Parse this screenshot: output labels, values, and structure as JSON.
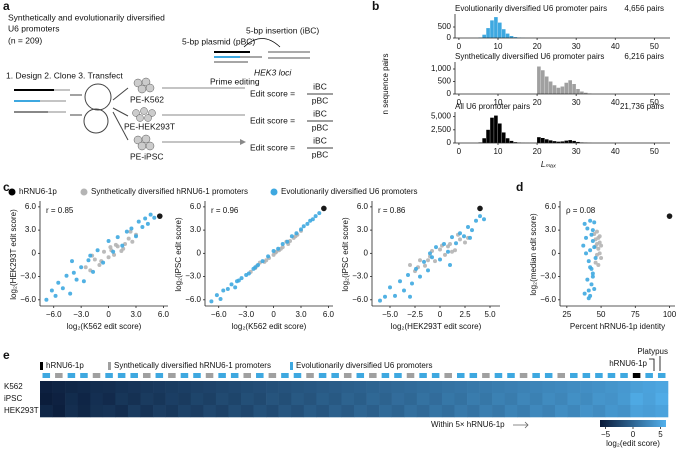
{
  "panel_labels": [
    "a",
    "b",
    "c",
    "d",
    "e"
  ],
  "diagram": {
    "title": [
      "Synthetically and evolutionarily diversified",
      "U6 promoters"
    ],
    "n": "(n = 209)",
    "plasmid": "5-bp plasmid (pBC)",
    "insertion": "5-bp insertion (iBC)",
    "loci": "HEK3 loci",
    "steps": "1. Design  2. Clone  3. Transfect",
    "prime_editing": "Prime editing",
    "cell_lines": [
      "PE-K562",
      "PE-HEK293T",
      "PE-iPSC"
    ],
    "edit_score": "Edit score =",
    "numerator": "iBC",
    "denominator": "pBC"
  },
  "chart_data": [
    {
      "type": "histogram",
      "title": "Evolutionarily diversified U6 promoter pairs",
      "note": "4,656 pairs",
      "color": "#3ea8e0",
      "bins": [
        4,
        5,
        6,
        7,
        8,
        9,
        10,
        11,
        12,
        13,
        14,
        15,
        16,
        17,
        18,
        19,
        20,
        21,
        22,
        23,
        24,
        25,
        26,
        27,
        28,
        29,
        30,
        31,
        32,
        33,
        34
      ],
      "values": [
        0,
        20,
        150,
        450,
        800,
        950,
        700,
        400,
        200,
        90,
        40,
        15,
        5,
        0,
        0,
        0,
        0,
        0,
        0,
        0,
        0,
        0,
        0,
        0,
        0,
        0,
        0,
        0,
        0,
        0
      ],
      "xlim": [
        -1,
        54
      ],
      "xticks": [
        0,
        10,
        20,
        30,
        40,
        50
      ],
      "ylim": [
        0,
        1000
      ],
      "yticks": [
        0,
        500
      ]
    },
    {
      "type": "histogram",
      "title": "Synthetically diversified U6 promoter pairs",
      "note": "6,216 pairs",
      "color": "#a0a0a0",
      "ylabel": "n sequence pairs",
      "bins": [
        4,
        5,
        6,
        7,
        8,
        9,
        10,
        11,
        12,
        13,
        14,
        15,
        16,
        17,
        18,
        19,
        20,
        21,
        22,
        23,
        24,
        25,
        26,
        27,
        28,
        29,
        30,
        31,
        32,
        33,
        34
      ],
      "values": [
        0,
        0,
        0,
        0,
        0,
        0,
        0,
        0,
        0,
        0,
        0,
        0,
        0,
        0,
        0,
        0,
        1100,
        950,
        700,
        500,
        350,
        250,
        300,
        450,
        550,
        400,
        200,
        100,
        50,
        20
      ],
      "xlim": [
        -1,
        54
      ],
      "xticks": [
        0,
        10,
        20,
        30,
        40,
        50
      ],
      "ylim": [
        0,
        1200
      ],
      "yticks": [
        0,
        500,
        {
          "value": 1000,
          "label": "1,000"
        }
      ]
    },
    {
      "type": "histogram",
      "title": "All U6 promoter pairs",
      "note": "21,736 pairs",
      "color": "#000000",
      "xlabel": "Lₘₐₓ",
      "bins": [
        4,
        5,
        6,
        7,
        8,
        9,
        10,
        11,
        12,
        13,
        14,
        15,
        16,
        17,
        18,
        19,
        20,
        21,
        22,
        23,
        24,
        25,
        26,
        27,
        28,
        29,
        30,
        31,
        32,
        33,
        34
      ],
      "values": [
        0,
        100,
        900,
        2500,
        4800,
        5200,
        3700,
        2000,
        900,
        400,
        150,
        60,
        20,
        10,
        5,
        5,
        1100,
        950,
        700,
        500,
        350,
        250,
        300,
        450,
        550,
        400,
        200,
        100,
        50,
        20
      ],
      "xlim": [
        -1,
        54
      ],
      "xticks": [
        0,
        10,
        20,
        30,
        40,
        50
      ],
      "ylim": [
        0,
        5500
      ],
      "yticks": [
        0,
        {
          "value": 2500,
          "label": "2,500"
        },
        {
          "value": 5000,
          "label": "5,000"
        }
      ]
    },
    {
      "type": "scatter",
      "annotation": "r = 0.85",
      "xlabel": "log₂(K562 edit score)",
      "ylabel": "log₂(HEK293T edit score)",
      "xlim": [
        -7.5,
        6.5
      ],
      "xticks": [
        {
          "value": -6,
          "label": "−6.0"
        },
        {
          "value": -3,
          "label": "−3.0"
        },
        0,
        {
          "value": 3,
          "label": "3.0"
        },
        {
          "value": 6,
          "label": "6.0"
        }
      ],
      "ylim": [
        -6.8,
        6.5
      ],
      "yticks": [
        {
          "value": -6,
          "label": "−6.0"
        },
        {
          "value": -3,
          "label": "−3.0"
        },
        0,
        {
          "value": 3,
          "label": "3.0"
        },
        {
          "value": 6,
          "label": "6.0"
        }
      ],
      "series": [
        {
          "name": "hRNU6-1p",
          "color": "#000000",
          "x": [
            5.6
          ],
          "values": [
            4.8
          ]
        },
        {
          "name": "Synthetically diversified hRNU6-1 promoters",
          "color": "#b4b4b4",
          "x": [
            -2.5,
            -2,
            -1.5,
            -1,
            -0.5,
            0,
            0.3,
            0.6,
            1,
            1.4,
            1.8,
            2.2,
            2.6,
            3,
            -1.8,
            0.8,
            1.6,
            2.4,
            -0.8,
            0.2
          ],
          "values": [
            -1.8,
            -2.2,
            -0.8,
            -1.5,
            0.2,
            -0.5,
            0.4,
            -0.2,
            0.9,
            0.3,
            1.2,
            1.9,
            1.5,
            2.4,
            -0.3,
            1.1,
            0.6,
            2.8,
            -1,
            0.8
          ]
        },
        {
          "name": "Evolutionarily diversified U6 promoters",
          "color": "#3ea8e0",
          "x": [
            -6.8,
            -6.2,
            -5.8,
            -5.5,
            -5,
            -4.6,
            -4.2,
            -3.8,
            -3.5,
            -3,
            -2.7,
            -2.2,
            -1.7,
            -1.2,
            -0.6,
            0,
            0.5,
            1,
            1.5,
            2,
            2.5,
            3,
            3.3,
            3.7,
            4,
            4.3,
            4.6,
            5,
            -4,
            -2
          ],
          "values": [
            -6,
            -4.8,
            -5.5,
            -3.8,
            -4.5,
            -2.9,
            -5.2,
            -2.5,
            -3.4,
            -1.8,
            -3.6,
            -0.9,
            -2.4,
            0.4,
            -1.2,
            1.6,
            0.2,
            2.1,
            1,
            2.8,
            3.2,
            2.2,
            4.1,
            3.4,
            4.5,
            3.8,
            5,
            4.6,
            -1,
            -0.3
          ]
        }
      ]
    },
    {
      "type": "scatter",
      "annotation": "r = 0.96",
      "xlabel": "log₂(K562 edit score)",
      "ylabel": "log₂(iPSC edit score)",
      "xlim": [
        -7.5,
        6.5
      ],
      "xticks": [
        {
          "value": -6,
          "label": "−6.0"
        },
        {
          "value": -3,
          "label": "−3.0"
        },
        0,
        {
          "value": 3,
          "label": "3.0"
        },
        {
          "value": 6,
          "label": "6.0"
        }
      ],
      "ylim": [
        -6.8,
        6.5
      ],
      "yticks": [
        {
          "value": -6,
          "label": "−6.0"
        },
        {
          "value": -3,
          "label": "−3.0"
        },
        0,
        {
          "value": 3,
          "label": "3.0"
        },
        {
          "value": 6,
          "label": "6.0"
        }
      ],
      "series": [
        {
          "color": "#000000",
          "x": [
            5.5
          ],
          "values": [
            5.8
          ]
        },
        {
          "color": "#b4b4b4",
          "x": [
            -2.5,
            -2,
            -1.5,
            -1,
            -0.5,
            0,
            0.3,
            0.6,
            1,
            1.4,
            1.8,
            2.2,
            2.6,
            3,
            -1.8,
            0.8,
            1.6,
            2.4,
            -0.8,
            0.2
          ],
          "values": [
            -2.4,
            -1.9,
            -1.2,
            -1.1,
            -0.6,
            -0.2,
            0.2,
            0.4,
            0.8,
            1.5,
            1.6,
            2,
            2.4,
            2.9,
            -1.6,
            0.6,
            1.2,
            2.2,
            -0.9,
            0.1
          ]
        },
        {
          "color": "#3ea8e0",
          "x": [
            -6.8,
            -6.2,
            -5.8,
            -5.5,
            -5,
            -4.6,
            -4.2,
            -3.8,
            -3.5,
            -3,
            -2.7,
            -2.2,
            -1.7,
            -1.2,
            -0.6,
            0,
            0.5,
            1,
            1.5,
            2,
            2.5,
            3,
            3.3,
            3.7,
            4,
            4.3,
            4.6,
            5,
            -4,
            -2
          ],
          "values": [
            -6.2,
            -5.4,
            -5.9,
            -4.8,
            -4.6,
            -4,
            -4.4,
            -3.5,
            -3.2,
            -2.8,
            -2.6,
            -2,
            -1.5,
            -1,
            -0.4,
            0.3,
            0.6,
            1.2,
            1.5,
            2.2,
            2.6,
            3.1,
            3.5,
            3.8,
            4.2,
            4.4,
            4.8,
            5.2,
            -3.6,
            -1.8
          ]
        }
      ]
    },
    {
      "type": "scatter",
      "annotation": "r = 0.86",
      "xlabel": "log₂(HEK293T edit score)",
      "ylabel": "log₂(iPSC edit score)",
      "xlim": [
        -6.8,
        6
      ],
      "xticks": [
        {
          "value": -5,
          "label": "−5.0"
        },
        {
          "value": -2.5,
          "label": "−2.5"
        },
        0,
        2.5,
        {
          "value": 5,
          "label": "5.0"
        }
      ],
      "ylim": [
        -6.8,
        6.5
      ],
      "yticks": [
        {
          "value": -6,
          "label": "−6.0"
        },
        {
          "value": -3,
          "label": "−3.0"
        },
        0,
        {
          "value": 3,
          "label": "3.0"
        },
        {
          "value": 6,
          "label": "6.0"
        }
      ],
      "series": [
        {
          "color": "#000000",
          "x": [
            4
          ],
          "values": [
            5.8
          ]
        },
        {
          "color": "#b4b4b4",
          "x": [
            -3,
            -2.5,
            -2,
            -1.5,
            -1,
            -0.5,
            0,
            0.5,
            1,
            1.5,
            2,
            2.5,
            -2.2,
            0.2,
            1.2,
            -0.8,
            0.8,
            1.8,
            2.8,
            -1.2
          ],
          "values": [
            -1.5,
            -2.3,
            -0.9,
            -1.6,
            -0.4,
            -1,
            0.5,
            -0.2,
            1.2,
            0.4,
            1.8,
            1.4,
            -1.8,
            1,
            0.2,
            0.3,
            0.9,
            2.4,
            2,
            -0.9
          ]
        },
        {
          "color": "#3ea8e0",
          "x": [
            -6,
            -5.5,
            -5,
            -4.5,
            -4,
            -3.6,
            -3.2,
            -2.8,
            -2.4,
            -2,
            -1.6,
            -1.2,
            -0.8,
            -0.4,
            0,
            0.4,
            0.8,
            1.2,
            1.6,
            2,
            2.4,
            2.8,
            3.2,
            3.6,
            4,
            4.4,
            -3,
            -1,
            1,
            3
          ],
          "values": [
            -6.1,
            -5.6,
            -4.4,
            -5.5,
            -3.6,
            -4.8,
            -2.8,
            -3.9,
            -2,
            -3,
            -1.1,
            -2.2,
            -0.5,
            0.8,
            -0.8,
            1.2,
            0.2,
            2.1,
            1.3,
            2.6,
            2.2,
            3.4,
            3,
            4.2,
            4.8,
            4.4,
            -5.6,
            0,
            -1.5,
            2
          ]
        }
      ]
    },
    {
      "type": "scatter",
      "annotation": "ρ = 0.08",
      "xlabel": "Percent hRNU6-1p identity",
      "ylabel": "log₂(median edit score)",
      "xlim": [
        20,
        104
      ],
      "xticks": [
        25,
        50,
        75,
        100
      ],
      "ylim": [
        -6.8,
        6.5
      ],
      "yticks": [
        {
          "value": -6,
          "label": "−6.0"
        },
        {
          "value": -3,
          "label": "−3.0"
        },
        0,
        {
          "value": 3,
          "label": "3.0"
        },
        {
          "value": 6,
          "label": "6.0"
        }
      ],
      "series": [
        {
          "color": "#000000",
          "x": [
            100
          ],
          "values": [
            4.8
          ]
        },
        {
          "color": "#b4b4b4",
          "x": [
            45,
            46,
            47,
            48,
            49,
            50,
            46,
            47,
            48,
            49,
            47,
            48,
            46,
            49,
            50
          ],
          "values": [
            2.5,
            1.8,
            1.2,
            0.6,
            0,
            -0.6,
            -1.2,
            2.8,
            2,
            1.4,
            -0.2,
            -1.5,
            0.9,
            2.2,
            1
          ]
        },
        {
          "color": "#3ea8e0",
          "x": [
            38,
            40,
            42,
            43,
            44,
            45,
            39,
            41,
            42,
            44,
            40,
            43,
            45,
            38,
            41,
            44,
            42,
            46,
            39,
            43,
            37,
            44,
            41,
            42,
            45
          ],
          "values": [
            3.8,
            3.2,
            4.2,
            2.4,
            1.6,
            0.8,
            0,
            -1,
            -1.8,
            -2.6,
            -3.4,
            -4,
            -4.6,
            -5.2,
            -5.8,
            3,
            0.4,
            -0.6,
            2,
            -2,
            1,
            -3,
            -4.8,
            -5.5,
            4
          ]
        }
      ]
    },
    {
      "type": "heatmap",
      "rows": [
        "K562",
        "iPSC",
        "HEK293T"
      ],
      "series": [
        {
          "name": "hRNU6-1p",
          "color": "#000000"
        },
        {
          "name": "Synthetically diversified hRNU6-1 promoters",
          "color": "#a0a0a0"
        },
        {
          "name": "Evolutionarily diversified U6 promoters",
          "color": "#3ea8e0"
        }
      ],
      "column_series": [
        2,
        1,
        2,
        2,
        1,
        2,
        2,
        2,
        1,
        2,
        1,
        2,
        2,
        1,
        2,
        2,
        1,
        2,
        1,
        2,
        2,
        1,
        2,
        2,
        1,
        2,
        1,
        2,
        2,
        1,
        2,
        2,
        1,
        2,
        2,
        1,
        2,
        2,
        1,
        2,
        2,
        1,
        2,
        2,
        2,
        2,
        2,
        0,
        2,
        2
      ],
      "values": [
        [
          -5.5,
          -5.2,
          -5,
          -4.8,
          -4.5,
          -4.4,
          -4.1,
          -3.9,
          -3.7,
          -3.5,
          -3.3,
          -3.1,
          -2.9,
          -2.7,
          -2.5,
          -2.3,
          -2.1,
          -1.9,
          -1.7,
          -1.5,
          -1.3,
          -1.1,
          -0.9,
          -0.7,
          -0.5,
          -0.3,
          -0.1,
          0.1,
          0.3,
          0.5,
          0.7,
          0.9,
          1.1,
          1.3,
          1.5,
          1.7,
          1.9,
          2.1,
          2.3,
          2.5,
          2.7,
          2.9,
          3.1,
          3.3,
          3.5,
          3.8,
          4.1,
          4.6,
          4.9,
          5.2
        ],
        [
          -5.8,
          -5.4,
          -4.6,
          -5.1,
          -4.3,
          -4.7,
          -3.8,
          -4.2,
          -3.4,
          -3.8,
          -3.1,
          -3.4,
          -2.6,
          -3,
          -2.2,
          -2.6,
          -1.8,
          -2.2,
          -1.4,
          -1.8,
          -1,
          -1.4,
          -0.6,
          -1,
          -0.2,
          -0.6,
          0.2,
          -0.2,
          0.6,
          0.2,
          1,
          0.6,
          1.4,
          1,
          1.8,
          1.4,
          2.2,
          1.8,
          2.6,
          2.2,
          3,
          2.6,
          3.4,
          3,
          3.8,
          3.6,
          4.2,
          5.4,
          4.8,
          5.6
        ],
        [
          -5,
          -5.6,
          -4.4,
          -5,
          -4.2,
          -4,
          -4.5,
          -3.4,
          -4,
          -3.2,
          -3.6,
          -2.8,
          -3.2,
          -2.4,
          -2.9,
          -2,
          -2.5,
          -1.6,
          -2.1,
          -1.2,
          -1.7,
          -0.8,
          -1.3,
          -0.4,
          -0.9,
          0,
          -0.5,
          0.4,
          -0.1,
          0.8,
          0.3,
          1.2,
          0.7,
          1.6,
          1.1,
          2,
          1.5,
          2.4,
          1.9,
          2.8,
          2.3,
          3.2,
          2.7,
          3.6,
          3.1,
          3.9,
          3.6,
          4.8,
          4.5,
          4.9
        ]
      ],
      "annotations": [
        "Platypus",
        "hRNU6-1p",
        "Within 5× hRNU6-1p"
      ],
      "colorbar": {
        "label": "log₂(edit score)",
        "lim": [
          -6,
          6
        ],
        "ticks": [
          {
            "value": -5,
            "label": "−5"
          },
          0,
          5
        ],
        "colors": [
          "#0a1a38",
          "#52b0ec"
        ]
      }
    }
  ]
}
